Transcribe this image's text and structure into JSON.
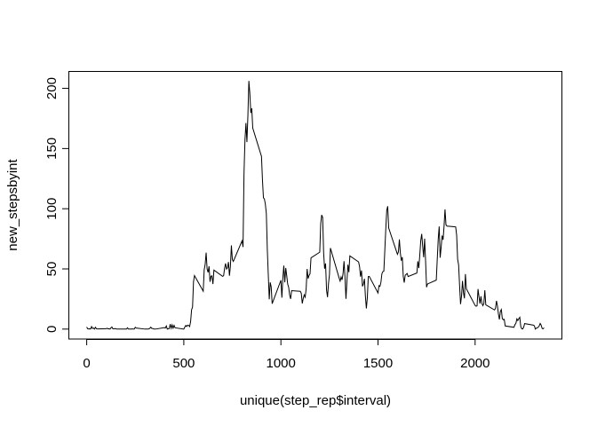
{
  "chart_data": {
    "type": "line",
    "xlabel": "unique(step_rep$interval)",
    "ylabel": "new_stepsbyint",
    "color": "#000000",
    "xlim": [
      -94.2,
      2449.2
    ],
    "xticks": [
      0,
      500,
      1000,
      1500,
      2000
    ],
    "ylim": [
      -8.25,
      214.42
    ],
    "yticks": [
      0,
      50,
      100,
      150,
      200
    ],
    "x": [
      0,
      5,
      10,
      15,
      20,
      25,
      30,
      35,
      40,
      45,
      50,
      55,
      100,
      105,
      110,
      115,
      120,
      125,
      130,
      135,
      140,
      145,
      150,
      155,
      200,
      205,
      210,
      215,
      220,
      225,
      230,
      235,
      240,
      245,
      250,
      255,
      300,
      305,
      310,
      315,
      320,
      325,
      330,
      335,
      340,
      345,
      350,
      355,
      400,
      405,
      410,
      415,
      420,
      425,
      430,
      435,
      440,
      445,
      450,
      455,
      500,
      505,
      510,
      515,
      520,
      525,
      530,
      535,
      540,
      545,
      550,
      555,
      600,
      605,
      610,
      615,
      620,
      625,
      630,
      635,
      640,
      645,
      650,
      655,
      700,
      705,
      710,
      715,
      720,
      725,
      730,
      735,
      740,
      745,
      750,
      755,
      800,
      805,
      810,
      815,
      820,
      825,
      830,
      835,
      840,
      845,
      850,
      855,
      900,
      905,
      910,
      915,
      920,
      925,
      930,
      935,
      940,
      945,
      950,
      955,
      1000,
      1005,
      1010,
      1015,
      1020,
      1025,
      1030,
      1035,
      1040,
      1045,
      1050,
      1055,
      1100,
      1105,
      1110,
      1115,
      1120,
      1125,
      1130,
      1135,
      1140,
      1145,
      1150,
      1155,
      1200,
      1205,
      1210,
      1215,
      1220,
      1225,
      1230,
      1235,
      1240,
      1245,
      1250,
      1255,
      1300,
      1305,
      1310,
      1315,
      1320,
      1325,
      1330,
      1335,
      1340,
      1345,
      1350,
      1355,
      1400,
      1405,
      1410,
      1415,
      1420,
      1425,
      1430,
      1435,
      1440,
      1445,
      1450,
      1455,
      1500,
      1505,
      1510,
      1515,
      1520,
      1525,
      1530,
      1535,
      1540,
      1545,
      1550,
      1555,
      1600,
      1605,
      1610,
      1615,
      1620,
      1625,
      1630,
      1635,
      1640,
      1645,
      1650,
      1655,
      1700,
      1705,
      1710,
      1715,
      1720,
      1725,
      1730,
      1735,
      1740,
      1745,
      1750,
      1755,
      1800,
      1805,
      1810,
      1815,
      1820,
      1825,
      1830,
      1835,
      1840,
      1845,
      1850,
      1855,
      1900,
      1905,
      1910,
      1915,
      1920,
      1925,
      1930,
      1935,
      1940,
      1945,
      1950,
      1955,
      2000,
      2005,
      2010,
      2015,
      2020,
      2025,
      2030,
      2035,
      2040,
      2045,
      2050,
      2055,
      2100,
      2105,
      2110,
      2115,
      2120,
      2125,
      2130,
      2135,
      2140,
      2145,
      2150,
      2155,
      2200,
      2205,
      2210,
      2215,
      2220,
      2225,
      2230,
      2235,
      2240,
      2245,
      2250,
      2255,
      2300,
      2305,
      2310,
      2315,
      2320,
      2325,
      2330,
      2335,
      2340,
      2345,
      2350,
      2355
    ],
    "values": [
      1.7,
      0.3,
      0.1,
      0.2,
      0.1,
      2.1,
      0.5,
      0.9,
      0,
      1.5,
      0.3,
      0.1,
      0.3,
      0.7,
      0.2,
      0.3,
      0,
      1.1,
      1.8,
      0.2,
      0.2,
      0.4,
      0.3,
      0,
      0,
      0,
      1.1,
      0,
      0,
      0.1,
      0,
      0.2,
      0,
      0,
      1.5,
      0.9,
      0,
      0,
      0,
      0,
      0.2,
      0.6,
      1.6,
      0.6,
      0.5,
      0.1,
      0,
      0,
      1.2,
      0.9,
      2.6,
      0,
      0.3,
      0.4,
      4.1,
      0.7,
      3.5,
      0.8,
      3.1,
      1.1,
      0,
      1.6,
      3,
      2.2,
      3.3,
      3,
      2.1,
      6.1,
      16,
      18.3,
      39.5,
      44.5,
      31.5,
      49.3,
      53.8,
      63.5,
      50,
      47.1,
      52.2,
      39.3,
      44,
      44.2,
      37.4,
      49,
      43.8,
      44.4,
      50.5,
      54.5,
      49.9,
      51,
      55.7,
      44.3,
      52.3,
      69.5,
      57.8,
      56.2,
      73.4,
      68.2,
      129.4,
      157.5,
      171.2,
      155.4,
      177.3,
      206.2,
      195.9,
      179.6,
      183.4,
      167,
      143.5,
      124,
      109.1,
      108.1,
      103.7,
      95.9,
      66.2,
      45.2,
      24.8,
      38.8,
      35,
      21.1,
      40.6,
      26.1,
      42.4,
      52.7,
      38.9,
      50.8,
      44.3,
      37.4,
      34.7,
      28.3,
      25.1,
      31.9,
      31.4,
      29.7,
      21.3,
      25.5,
      28.4,
      26.5,
      33.4,
      50,
      42,
      44.6,
      46,
      59.2,
      63.9,
      87.7,
      94.8,
      92.8,
      63.4,
      50.2,
      54.5,
      32.4,
      26.5,
      37.7,
      45.1,
      67.3,
      42.3,
      39.9,
      43.3,
      40.9,
      46.2,
      56.4,
      42.8,
      25.1,
      40,
      53.5,
      47.3,
      60.8,
      55.8,
      51.96,
      43.6,
      48.7,
      35.5,
      37.5,
      41.8,
      27.5,
      17.1,
      26.1,
      43.6,
      43.8,
      30,
      36.1,
      35.5,
      38.8,
      45.96,
      47.8,
      48.1,
      65.3,
      82.9,
      98.7,
      102.1,
      84,
      62.1,
      64.1,
      74.5,
      63.2,
      56.9,
      59.8,
      43.9,
      38.6,
      44.7,
      45.5,
      46.2,
      43.7,
      46.6,
      56.3,
      50.7,
      61.2,
      73.4,
      79.1,
      68.9,
      59.7,
      75.1,
      56.5,
      34.8,
      37.5,
      40.7,
      58,
      74.7,
      85.3,
      59.3,
      67.8,
      77.7,
      74.2,
      85.3,
      99.5,
      86.6,
      85.6,
      84.9,
      77.8,
      58,
      53.4,
      36.3,
      20.7,
      27.4,
      40,
      30.2,
      25.5,
      45.7,
      33.5,
      19.6,
      19,
      19.3,
      33.3,
      26.8,
      21.2,
      27.3,
      21.3,
      19.5,
      21.3,
      32.3,
      20.2,
      15.9,
      17.2,
      23.5,
      19.2,
      12.5,
      8,
      14.7,
      16.3,
      8.7,
      7.8,
      8.1,
      2.6,
      1.5,
      3.7,
      4.8,
      8.5,
      7.1,
      8.7,
      9.8,
      2.2,
      0.3,
      0.1,
      1.6,
      4.6,
      3.3,
      2.8,
      0,
      0.8,
      1,
      1.6,
      2.6,
      4.7,
      3.3,
      0.6,
      0.2,
      1.1
    ]
  }
}
